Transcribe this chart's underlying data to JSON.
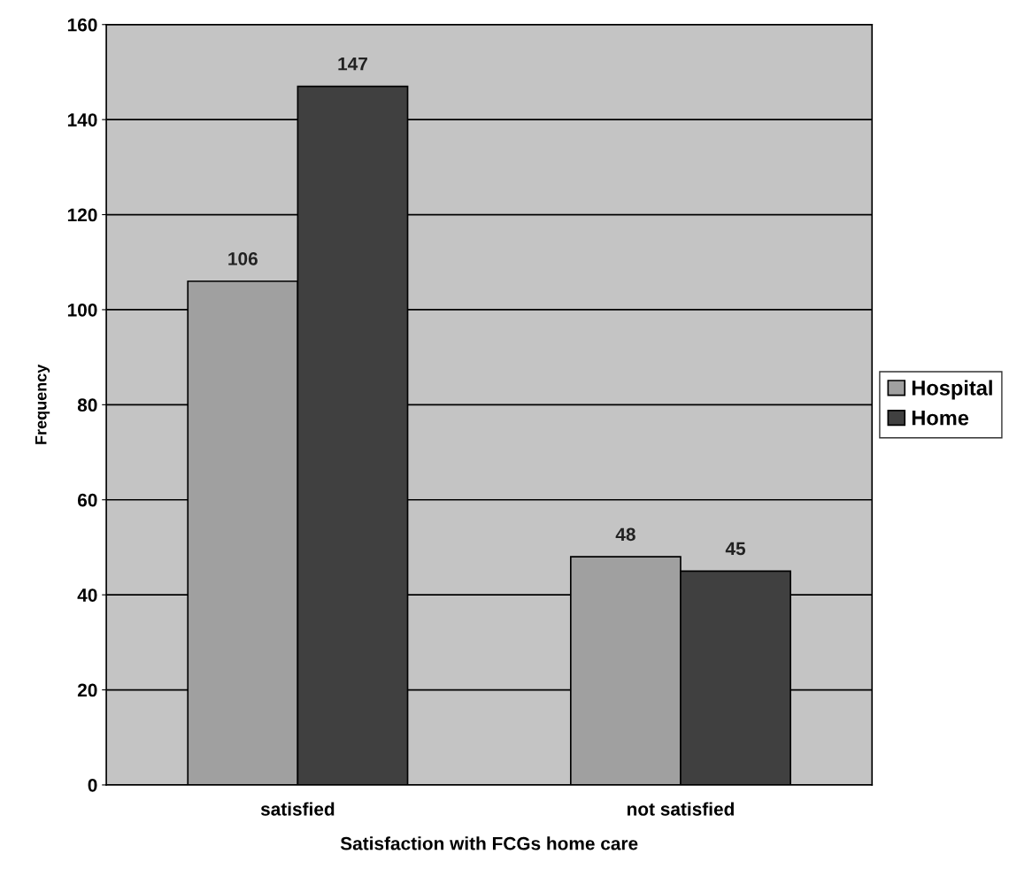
{
  "chart_data": {
    "type": "bar",
    "xlabel": "Satisfaction with FCGs home care",
    "ylabel": "Frequency",
    "categories": [
      "satisfied",
      "not satisfied"
    ],
    "series": [
      {
        "name": "Hospital",
        "color": "#a0a0a0",
        "values": [
          106,
          48
        ]
      },
      {
        "name": "Home",
        "color": "#404040",
        "values": [
          147,
          45
        ]
      }
    ],
    "ylim": [
      0,
      160
    ],
    "yticks": [
      0,
      20,
      40,
      60,
      80,
      100,
      120,
      140,
      160
    ],
    "grid": "y",
    "legend": "right",
    "data_labels": true
  }
}
